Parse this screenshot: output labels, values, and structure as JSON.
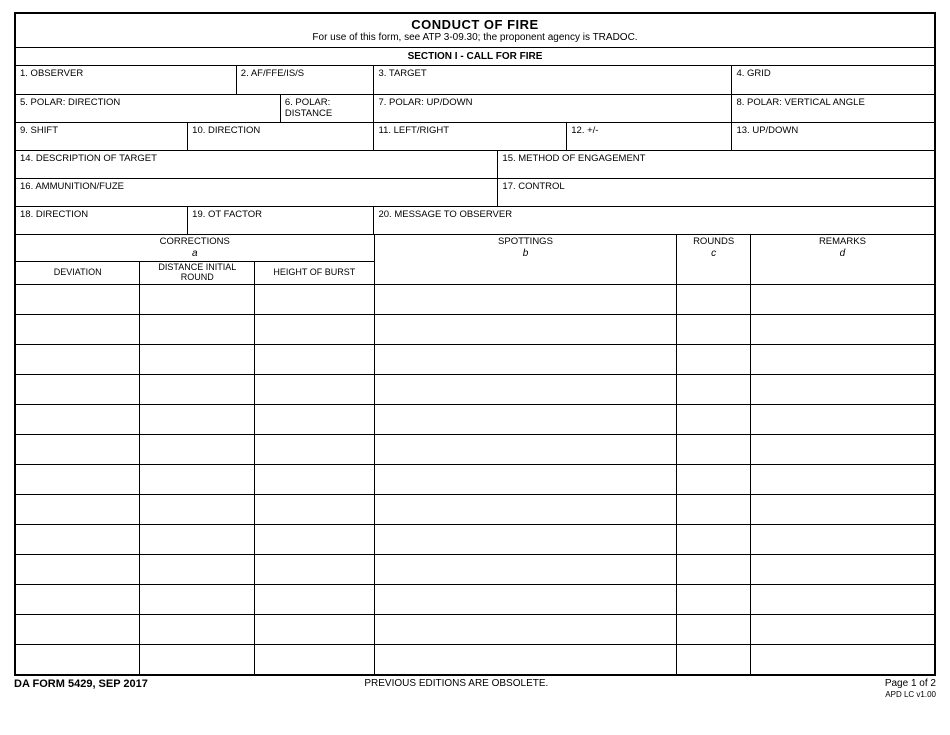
{
  "title": "CONDUCT OF FIRE",
  "subtitle": "For use of this form, see ATP 3-09.30; the proponent agency is TRADOC.",
  "section_header": "SECTION I - CALL FOR FIRE",
  "fields": {
    "f1": "1. OBSERVER",
    "f2": "2. AF/FFE/IS/S",
    "f3": "3. TARGET",
    "f4": "4. GRID",
    "f5": "5. POLAR: DIRECTION",
    "f6": "6. POLAR: DISTANCE",
    "f7": "7. POLAR: UP/DOWN",
    "f8": "8. POLAR: VERTICAL ANGLE",
    "f9": "9. SHIFT",
    "f10": "10. DIRECTION",
    "f11": "11. LEFT/RIGHT",
    "f12": "12. +/-",
    "f13": "13. UP/DOWN",
    "f14": "14. DESCRIPTION OF TARGET",
    "f15": "15. METHOD OF ENGAGEMENT",
    "f16": "16. AMMUNITION/FUZE",
    "f17": "17. CONTROL",
    "f18": "18. DIRECTION",
    "f19": "19. OT FACTOR",
    "f20": "20. MESSAGE TO OBSERVER"
  },
  "table_headers": {
    "corrections": "CORRECTIONS",
    "corrections_sub": "a",
    "deviation": "DEVIATION",
    "distance": "DISTANCE INITIAL ROUND",
    "height": "HEIGHT OF BURST",
    "spottings": "SPOTTINGS",
    "spottings_sub": "b",
    "rounds": "ROUNDS",
    "rounds_sub": "c",
    "remarks": "REMARKS",
    "remarks_sub": "d"
  },
  "data_row_count": 13,
  "footer": {
    "form_id": "DA FORM 5429, SEP 2017",
    "obsolete": "PREVIOUS EDITIONS ARE OBSOLETE.",
    "page": "Page 1 of 2",
    "apd": "APD LC v1.00"
  },
  "colors": {
    "border": "#000000",
    "background": "#ffffff",
    "text": "#000000"
  },
  "layout": {
    "col_widths_pct": {
      "deviation": 13.5,
      "distance": 12.5,
      "height": 13.0,
      "spottings": 33.0,
      "rounds": 8.0,
      "remarks": 20.0
    }
  }
}
